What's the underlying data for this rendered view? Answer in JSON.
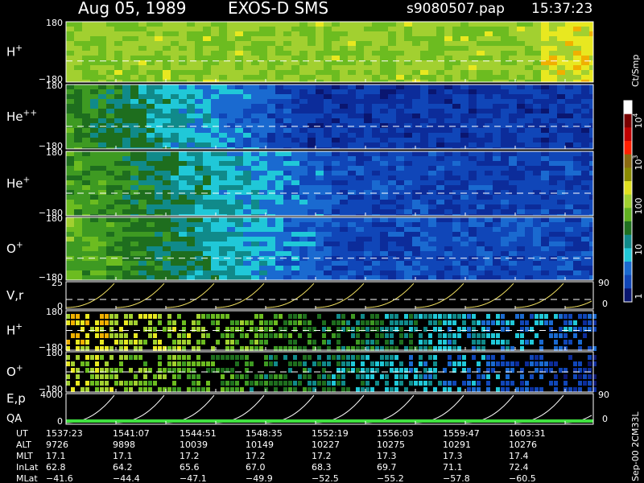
{
  "header": {
    "date": "Aug 05, 1989",
    "instrument": "EXOS-D SMS",
    "file": "s9080507.pap",
    "time": "15:37:23"
  },
  "panels": [
    {
      "label": {
        "base": "H",
        "sup": "+"
      },
      "top": "180",
      "bottom": "−180"
    },
    {
      "label": {
        "base": "He",
        "sup": "++"
      },
      "top": "180",
      "bottom": "−180"
    },
    {
      "label": {
        "base": "He",
        "sup": "+"
      },
      "top": "180",
      "bottom": "−180"
    },
    {
      "label": {
        "base": "O",
        "sup": "+"
      },
      "top": "180",
      "bottom": "−180"
    },
    {
      "label": {
        "base": "V,r",
        "sup": ""
      },
      "top": "25",
      "bottom": "0",
      "right_top": "90",
      "right_bottom": "0"
    },
    {
      "label": {
        "base": "H",
        "sup": "+"
      },
      "top": "180",
      "bottom": "−180"
    },
    {
      "label": {
        "base": "O",
        "sup": "+"
      },
      "top": "180",
      "bottom": "−180"
    },
    {
      "label": {
        "base": "E,p",
        "sup": ""
      },
      "label2": "QA",
      "top": "4000",
      "bottom": "0",
      "right_top": "90",
      "right_bottom": "0"
    }
  ],
  "colorbar": {
    "unit": "Ct/Smp",
    "labels": [
      {
        "base": "10",
        "sup": "4"
      },
      {
        "base": "10",
        "sup": "3"
      },
      {
        "base": "100",
        "sup": ""
      },
      {
        "base": "10",
        "sup": ""
      },
      {
        "base": "1",
        "sup": ""
      }
    ]
  },
  "footer_note": "Sep-00 2CM33L",
  "table": {
    "rows": [
      {
        "label": "UT",
        "cells": [
          "1537:23",
          "1541:07",
          "1544:51",
          "1548:35",
          "1552:19",
          "1556:03",
          "1559:47",
          "1603:31"
        ]
      },
      {
        "label": "ALT",
        "cells": [
          "9726",
          "9898",
          "10039",
          "10149",
          "10227",
          "10275",
          "10291",
          "10276"
        ]
      },
      {
        "label": "MLT",
        "cells": [
          "17.1",
          "17.1",
          "17.2",
          "17.2",
          "17.2",
          "17.3",
          "17.3",
          "17.4"
        ]
      },
      {
        "label": "InLat",
        "cells": [
          "62.8",
          "64.2",
          "65.6",
          "67.0",
          "68.3",
          "69.7",
          "71.1",
          "72.4"
        ]
      },
      {
        "label": "MLat",
        "cells": [
          "−41.6",
          "−44.4",
          "−47.1",
          "−49.9",
          "−52.5",
          "−55.2",
          "−57.8",
          "−60.5"
        ]
      }
    ]
  }
}
